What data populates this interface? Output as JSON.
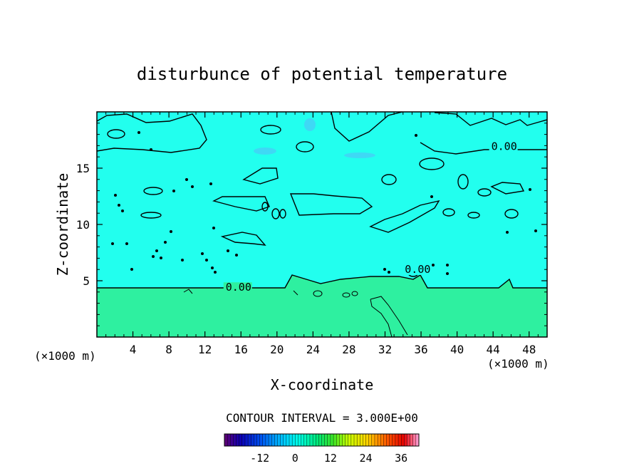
{
  "chart_data": {
    "type": "heatmap",
    "title": "disturbunce of potential temperature",
    "xlabel": "X-coordinate",
    "ylabel": "Z-coordinate",
    "x_unit_left": "(×1000 m)",
    "x_unit_right": "(×1000 m)",
    "xlim": [
      0,
      50
    ],
    "ylim": [
      0,
      20
    ],
    "x_ticks": [
      4,
      8,
      12,
      16,
      20,
      24,
      28,
      32,
      36,
      40,
      44,
      48
    ],
    "x_tick_labels": [
      "4",
      "8",
      "12",
      "16",
      "20",
      "24",
      "28",
      "32",
      "36",
      "40",
      "44",
      "48"
    ],
    "y_ticks": [
      5,
      10,
      15
    ],
    "y_tick_labels": [
      "5",
      "10",
      "15"
    ],
    "field": {
      "upper_layer_value": 0,
      "lower_layer_value": 8,
      "boundary_height": 4.3,
      "upper_color": "#22ffee",
      "lower_color": "#2ef0a0"
    },
    "contour_labels": [
      {
        "text": "0.00",
        "x": 14.3,
        "y": 4.1
      },
      {
        "text": "0.00",
        "x": 34.2,
        "y": 5.7
      },
      {
        "text": "0.00",
        "x": 43.8,
        "y": 16.6
      }
    ],
    "contour_interval_label": "CONTOUR INTERVAL = 3.000E+00",
    "colorbar": {
      "vmin": -24,
      "vmax": 42,
      "ticks": [
        -12,
        0,
        12,
        24,
        36
      ],
      "tick_labels": [
        "-12",
        "0",
        "12",
        "24",
        "36"
      ]
    }
  }
}
